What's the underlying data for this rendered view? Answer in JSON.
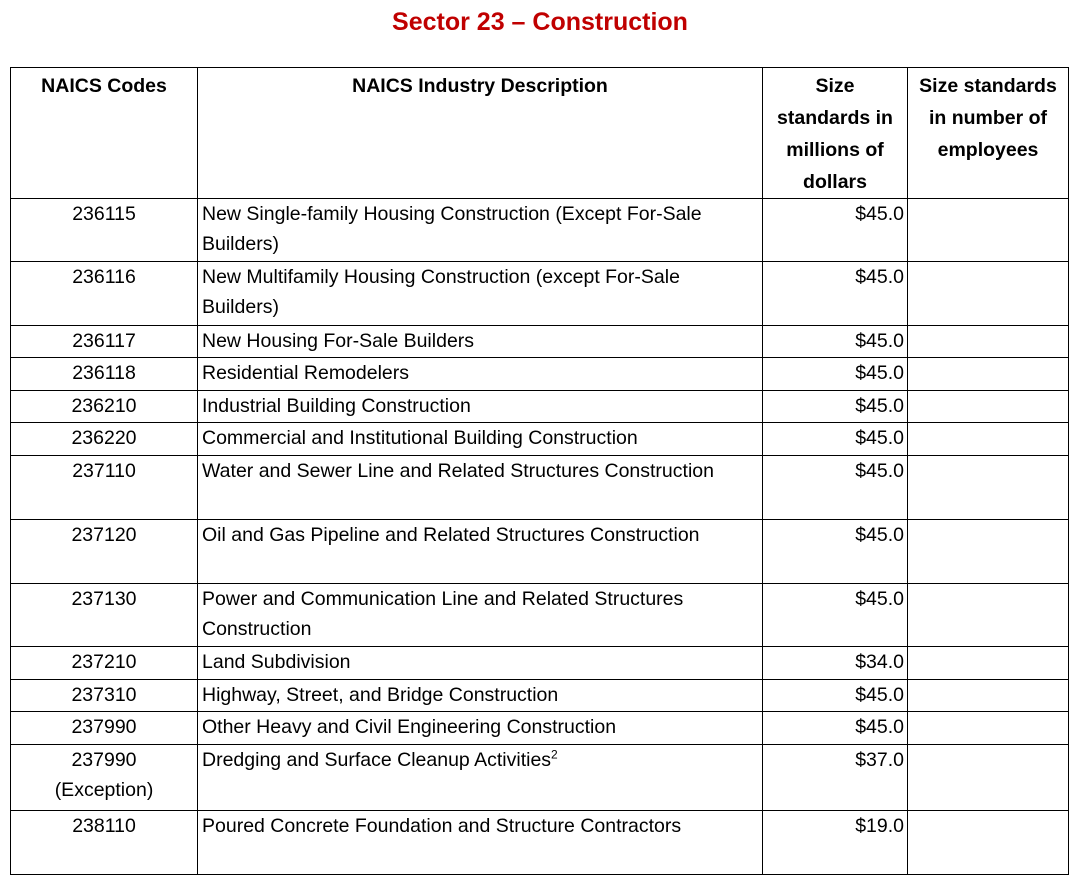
{
  "header": {
    "title": "Sector 23 – Construction"
  },
  "table": {
    "columns": [
      "NAICS Codes",
      "NAICS Industry Description",
      "Size standards in millions of dollars",
      "Size standards in number of employees"
    ],
    "rows": [
      {
        "code": "236115",
        "description": "New Single-family Housing Construction (Except For-Sale Builders)",
        "dollars": "$45.0"
      },
      {
        "code": "236116",
        "description": "New Multifamily Housing Construction (except For-Sale Builders)",
        "dollars": "$45.0"
      },
      {
        "code": "236117",
        "description": "New Housing For-Sale Builders",
        "dollars": "$45.0"
      },
      {
        "code": "236118",
        "description": "Residential Remodelers",
        "dollars": "$45.0"
      },
      {
        "code": "236210",
        "description": "Industrial Building Construction",
        "dollars": "$45.0"
      },
      {
        "code": "236220",
        "description": "Commercial and Institutional Building Construction",
        "dollars": "$45.0"
      },
      {
        "code": "237110",
        "description": "Water and Sewer Line and Related Structures Construction",
        "dollars": "$45.0"
      },
      {
        "code": "237120",
        "description": "Oil and Gas Pipeline and Related Structures Construction",
        "dollars": "$45.0"
      },
      {
        "code": "237130",
        "description": "Power and Communication Line and Related Structures Construction",
        "dollars": "$45.0"
      },
      {
        "code": "237210",
        "description": "Land Subdivision",
        "dollars": "$34.0"
      },
      {
        "code": "237310",
        "description": "Highway, Street, and Bridge Construction",
        "dollars": "$45.0"
      },
      {
        "code": "237990",
        "description": "Other Heavy and Civil Engineering Construction",
        "dollars": "$45.0"
      },
      {
        "code": "237990",
        "code_note": "(Exception)",
        "description": "Dredging and Surface Cleanup Activities",
        "footnote": "2",
        "dollars": "$37.0"
      },
      {
        "code": "238110",
        "description": "Poured Concrete Foundation and Structure Contractors",
        "dollars": "$19.0"
      }
    ]
  }
}
